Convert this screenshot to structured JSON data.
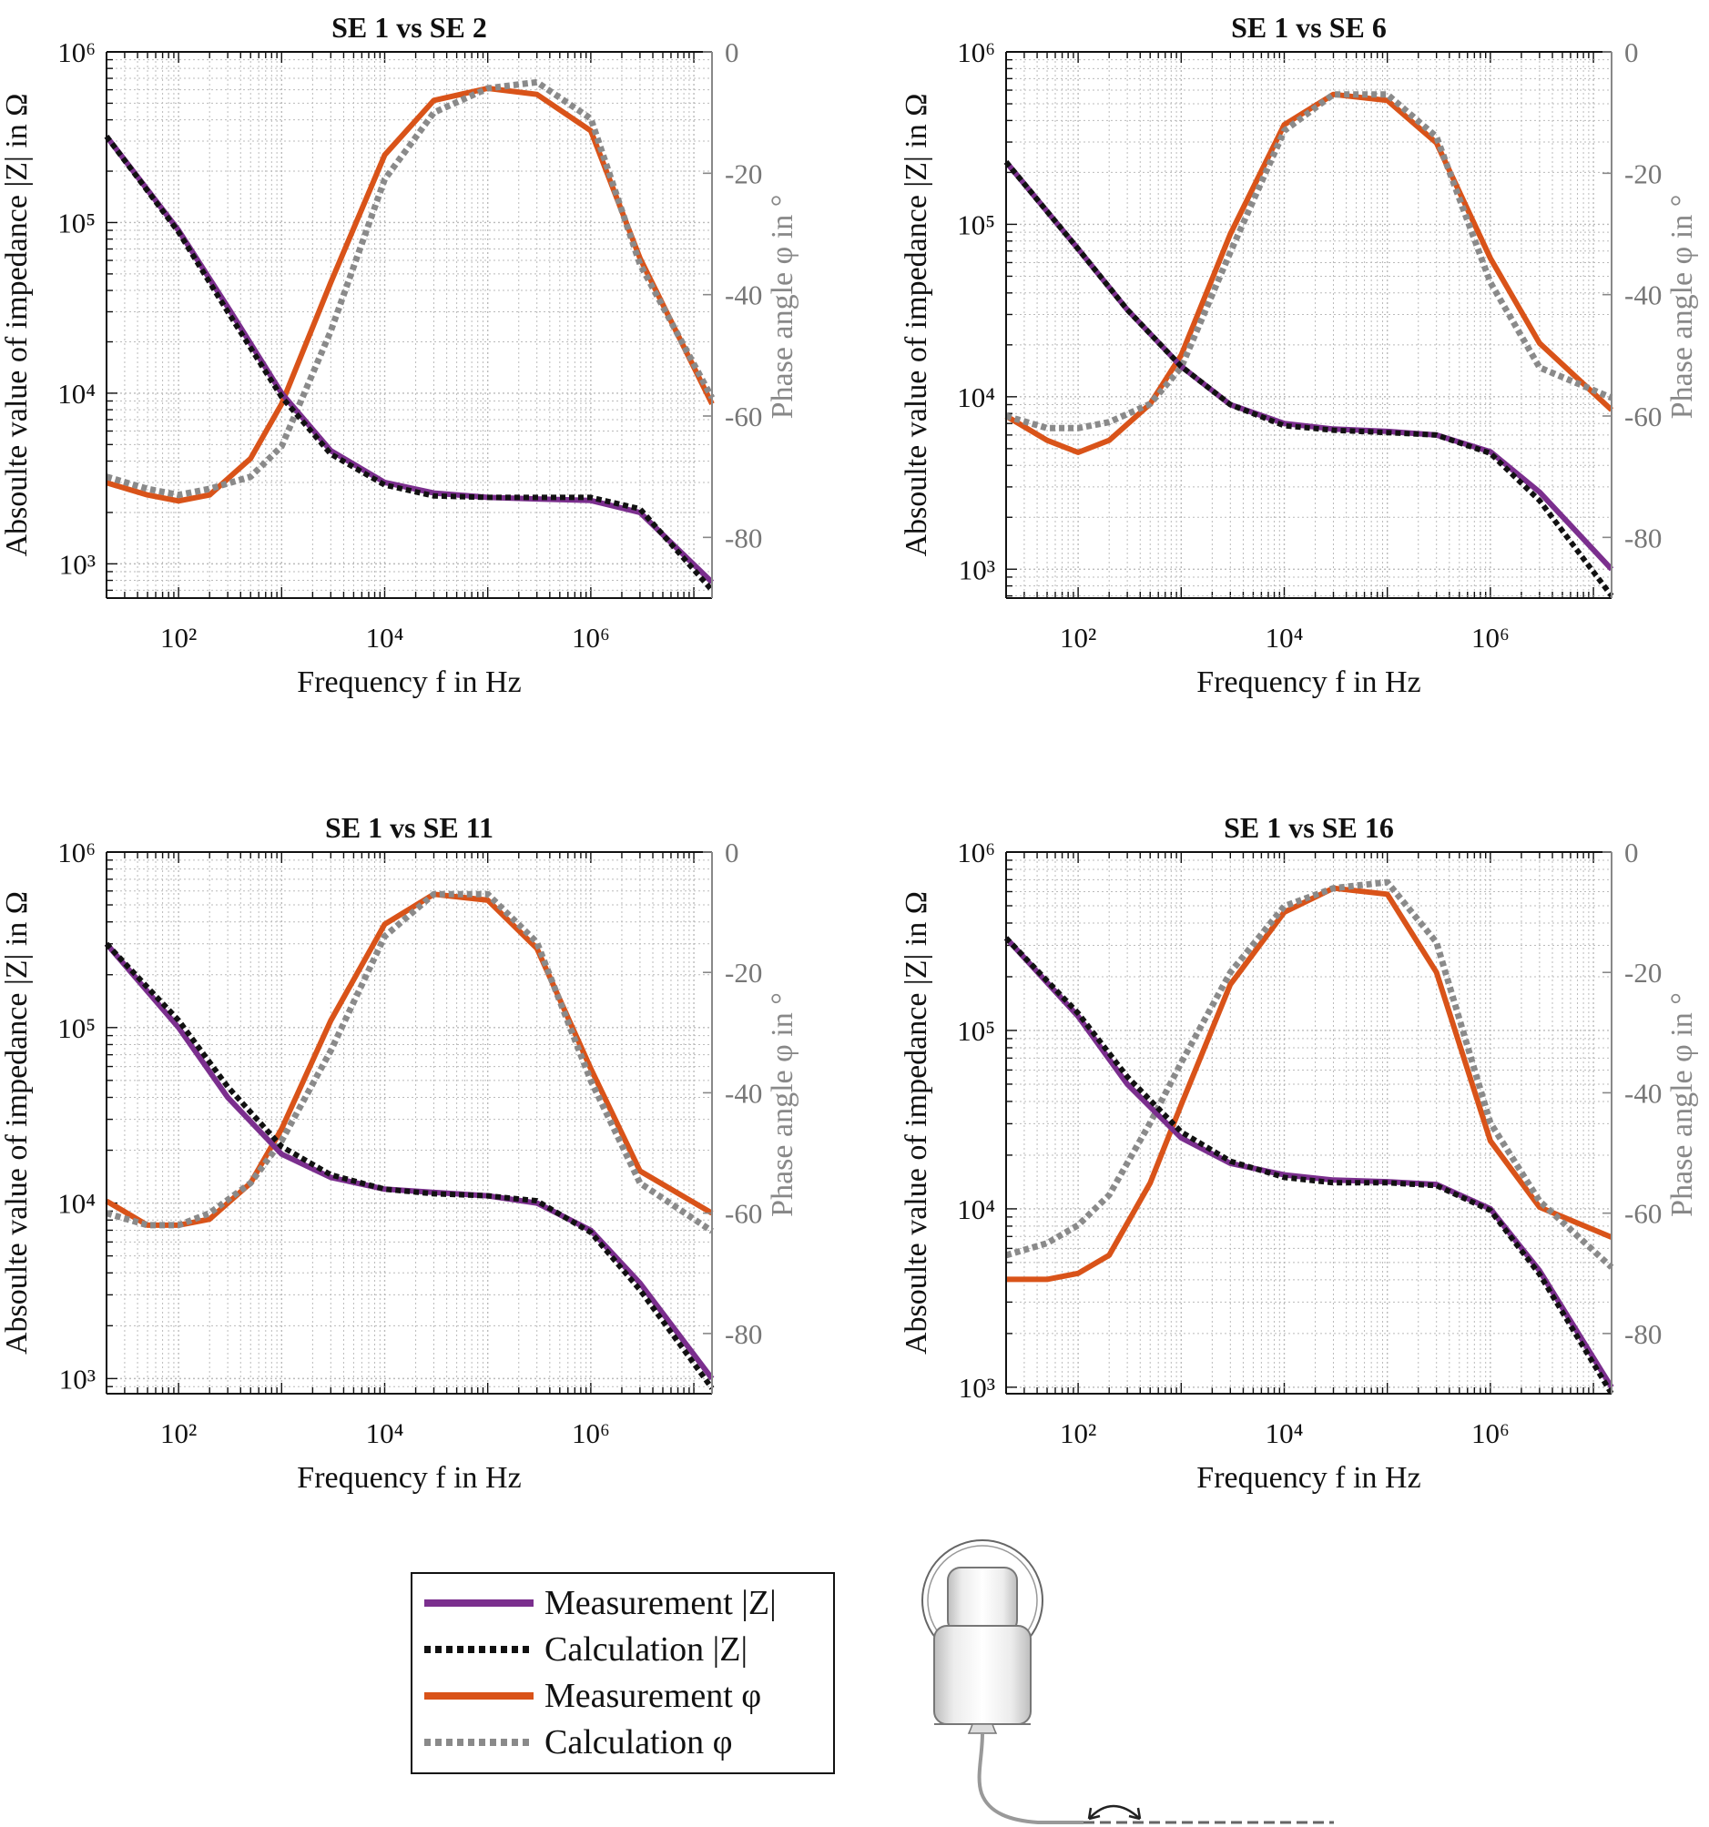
{
  "chart_data": [
    {
      "type": "line",
      "title": "SE 1 vs SE 2",
      "xlabel": "Frequency f in Hz",
      "ylabel": "Absoulte value of impedance |Z| in Ω",
      "ylabel_right": "Phase angle φ in °",
      "x_scale": "log",
      "xlim": [
        20,
        15000000
      ],
      "y_scale": "log",
      "ylim": [
        630,
        1000000
      ],
      "y_right_lim": [
        -90,
        0
      ],
      "x_ticks": [
        "10^2",
        "10^4",
        "10^6"
      ],
      "y_ticks": [
        "10^3",
        "10^4",
        "10^5",
        "10^6"
      ],
      "y_right_ticks": [
        "0",
        "-20",
        "-40",
        "-60",
        "-80"
      ],
      "series": [
        {
          "name": "Measurement |Z|",
          "axis": "left",
          "x": [
            20,
            100,
            300,
            1000,
            3000,
            10000,
            30000,
            100000,
            300000,
            1000000,
            3000000,
            15000000
          ],
          "y": [
            320000,
            90000,
            32000,
            10000,
            4600,
            3000,
            2600,
            2450,
            2400,
            2350,
            2000,
            780
          ]
        },
        {
          "name": "Calculation |Z|",
          "axis": "left",
          "x": [
            20,
            100,
            300,
            1000,
            3000,
            10000,
            30000,
            100000,
            300000,
            1000000,
            3000000,
            15000000
          ],
          "y": [
            320000,
            88000,
            30000,
            9500,
            4400,
            2900,
            2500,
            2450,
            2450,
            2450,
            2100,
            700
          ]
        },
        {
          "name": "Measurement φ",
          "axis": "right",
          "x": [
            20,
            50,
            100,
            200,
            500,
            1000,
            3000,
            10000,
            30000,
            100000,
            300000,
            1000000,
            3000000,
            15000000
          ],
          "y": [
            -71,
            -73,
            -74,
            -73,
            -67,
            -58,
            -38,
            -17,
            -8,
            -6,
            -7,
            -13,
            -34,
            -58
          ]
        },
        {
          "name": "Calculation φ",
          "axis": "right",
          "x": [
            20,
            50,
            100,
            200,
            500,
            1000,
            3000,
            10000,
            30000,
            100000,
            300000,
            1000000,
            3000000,
            15000000
          ],
          "y": [
            -70,
            -72,
            -73,
            -72,
            -70,
            -65,
            -46,
            -21,
            -10,
            -6,
            -5,
            -11,
            -35,
            -57
          ]
        }
      ]
    },
    {
      "type": "line",
      "title": "SE 1 vs SE 6",
      "xlabel": "Frequency f in Hz",
      "ylabel": "Absoulte value of impedance |Z| in Ω",
      "ylabel_right": "Phase angle φ in °",
      "x_scale": "log",
      "xlim": [
        20,
        15000000
      ],
      "y_scale": "log",
      "ylim": [
        680,
        1000000
      ],
      "y_right_lim": [
        -90,
        0
      ],
      "x_ticks": [
        "10^2",
        "10^4",
        "10^6"
      ],
      "y_ticks": [
        "10^3",
        "10^4",
        "10^5",
        "10^6"
      ],
      "y_right_ticks": [
        "0",
        "-20",
        "-40",
        "-60",
        "-80"
      ],
      "series": [
        {
          "name": "Measurement |Z|",
          "axis": "left",
          "x": [
            20,
            100,
            300,
            1000,
            3000,
            10000,
            30000,
            100000,
            300000,
            1000000,
            3000000,
            15000000
          ],
          "y": [
            230000,
            72000,
            32000,
            15000,
            9000,
            7000,
            6500,
            6300,
            6000,
            4800,
            2800,
            1000
          ]
        },
        {
          "name": "Calculation |Z|",
          "axis": "left",
          "x": [
            20,
            100,
            300,
            1000,
            3000,
            10000,
            30000,
            100000,
            300000,
            1000000,
            3000000,
            15000000
          ],
          "y": [
            230000,
            72000,
            32000,
            15000,
            9000,
            6800,
            6400,
            6200,
            6000,
            4700,
            2500,
            700
          ]
        },
        {
          "name": "Measurement φ",
          "axis": "right",
          "x": [
            20,
            50,
            100,
            200,
            500,
            1000,
            3000,
            10000,
            30000,
            100000,
            300000,
            1000000,
            3000000,
            15000000
          ],
          "y": [
            -60,
            -64,
            -66,
            -64,
            -58,
            -50,
            -30,
            -12,
            -7,
            -8,
            -15,
            -34,
            -48,
            -59
          ]
        },
        {
          "name": "Calculation φ",
          "axis": "right",
          "x": [
            20,
            50,
            100,
            200,
            500,
            1000,
            3000,
            10000,
            30000,
            100000,
            300000,
            1000000,
            3000000,
            15000000
          ],
          "y": [
            -60,
            -62,
            -62,
            -61,
            -58,
            -52,
            -33,
            -13,
            -7,
            -7,
            -14,
            -38,
            -52,
            -57
          ]
        }
      ]
    },
    {
      "type": "line",
      "title": "SE 1 vs SE 11",
      "xlabel": "Frequency f in Hz",
      "ylabel": "Absoulte value of impedance |Z| in Ω",
      "ylabel_right": "Phase angle φ in °",
      "x_scale": "log",
      "xlim": [
        20,
        15000000
      ],
      "y_scale": "log",
      "ylim": [
        820,
        1000000
      ],
      "y_right_lim": [
        -90,
        0
      ],
      "x_ticks": [
        "10^2",
        "10^4",
        "10^6"
      ],
      "y_ticks": [
        "10^3",
        "10^4",
        "10^5",
        "10^6"
      ],
      "y_right_ticks": [
        "0",
        "-20",
        "-40",
        "-60",
        "-80"
      ],
      "series": [
        {
          "name": "Measurement |Z|",
          "axis": "left",
          "x": [
            20,
            100,
            300,
            1000,
            3000,
            10000,
            30000,
            100000,
            300000,
            1000000,
            3000000,
            15000000
          ],
          "y": [
            300000,
            100000,
            40000,
            19000,
            14000,
            12000,
            11500,
            11000,
            10000,
            7000,
            3500,
            1000
          ]
        },
        {
          "name": "Calculation |Z|",
          "axis": "left",
          "x": [
            20,
            100,
            300,
            1000,
            3000,
            10000,
            30000,
            100000,
            300000,
            1000000,
            3000000,
            15000000
          ],
          "y": [
            300000,
            110000,
            46000,
            21000,
            14500,
            12000,
            11300,
            11000,
            10300,
            6800,
            3200,
            880
          ]
        },
        {
          "name": "Measurement φ",
          "axis": "right",
          "x": [
            20,
            50,
            100,
            200,
            500,
            1000,
            3000,
            10000,
            30000,
            100000,
            300000,
            1000000,
            3000000,
            15000000
          ],
          "y": [
            -58,
            -62,
            -62,
            -61,
            -55,
            -46,
            -28,
            -12,
            -7,
            -8,
            -16,
            -36,
            -53,
            -60
          ]
        },
        {
          "name": "Calculation φ",
          "axis": "right",
          "x": [
            20,
            50,
            100,
            200,
            500,
            1000,
            3000,
            10000,
            30000,
            100000,
            300000,
            1000000,
            3000000,
            15000000
          ],
          "y": [
            -60,
            -62,
            -62,
            -60,
            -55,
            -48,
            -33,
            -14,
            -7,
            -7,
            -15,
            -38,
            -55,
            -63
          ]
        }
      ]
    },
    {
      "type": "line",
      "title": "SE 1 vs SE 16",
      "xlabel": "Frequency f in Hz",
      "ylabel": "Absoulte value of impedance |Z| in Ω",
      "ylabel_right": "Phase angle φ in °",
      "x_scale": "log",
      "xlim": [
        20,
        15000000
      ],
      "y_scale": "log",
      "ylim": [
        920,
        1000000
      ],
      "y_right_lim": [
        -90,
        0
      ],
      "x_ticks": [
        "10^2",
        "10^4",
        "10^6"
      ],
      "y_ticks": [
        "10^3",
        "10^4",
        "10^5",
        "10^6"
      ],
      "y_right_ticks": [
        "0",
        "-20",
        "-40",
        "-60",
        "-80"
      ],
      "series": [
        {
          "name": "Measurement |Z|",
          "axis": "left",
          "x": [
            20,
            100,
            300,
            1000,
            3000,
            10000,
            30000,
            100000,
            300000,
            1000000,
            3000000,
            15000000
          ],
          "y": [
            330000,
            120000,
            50000,
            25000,
            18000,
            15500,
            14500,
            14200,
            13700,
            10000,
            4500,
            1000
          ]
        },
        {
          "name": "Calculation |Z|",
          "axis": "left",
          "x": [
            20,
            100,
            300,
            1000,
            3000,
            10000,
            30000,
            100000,
            300000,
            1000000,
            3000000,
            15000000
          ],
          "y": [
            330000,
            125000,
            55000,
            27000,
            18500,
            15000,
            14000,
            14000,
            13500,
            9800,
            4300,
            920
          ]
        },
        {
          "name": "Measurement φ",
          "axis": "right",
          "x": [
            20,
            50,
            100,
            200,
            500,
            1000,
            3000,
            10000,
            30000,
            100000,
            300000,
            1000000,
            3000000,
            15000000
          ],
          "y": [
            -71,
            -71,
            -70,
            -67,
            -55,
            -42,
            -22,
            -10,
            -6,
            -7,
            -20,
            -48,
            -59,
            -64
          ]
        },
        {
          "name": "Calculation φ",
          "axis": "right",
          "x": [
            20,
            50,
            100,
            200,
            500,
            1000,
            3000,
            10000,
            30000,
            100000,
            300000,
            1000000,
            3000000,
            15000000
          ],
          "y": [
            -67,
            -65,
            -62,
            -57,
            -45,
            -35,
            -20,
            -9,
            -6,
            -5,
            -15,
            -45,
            -58,
            -69
          ]
        }
      ]
    }
  ],
  "legend": {
    "items": [
      {
        "label": "Measurement |Z|",
        "style": "solid",
        "color": "#7b2f8e"
      },
      {
        "label": "Calculation |Z|",
        "style": "dotted",
        "color": "#111111"
      },
      {
        "label": "Measurement φ",
        "style": "solid",
        "color": "#d95319"
      },
      {
        "label": "Calculation φ",
        "style": "dotted",
        "color": "#8a8a8a"
      }
    ]
  },
  "colors": {
    "measurement_z": "#7b2f8e",
    "calculation_z": "#111111",
    "measurement_phi": "#d95319",
    "calculation_phi": "#8a8a8a",
    "grid": "#bbbbbb",
    "right_axis": "#888888"
  }
}
